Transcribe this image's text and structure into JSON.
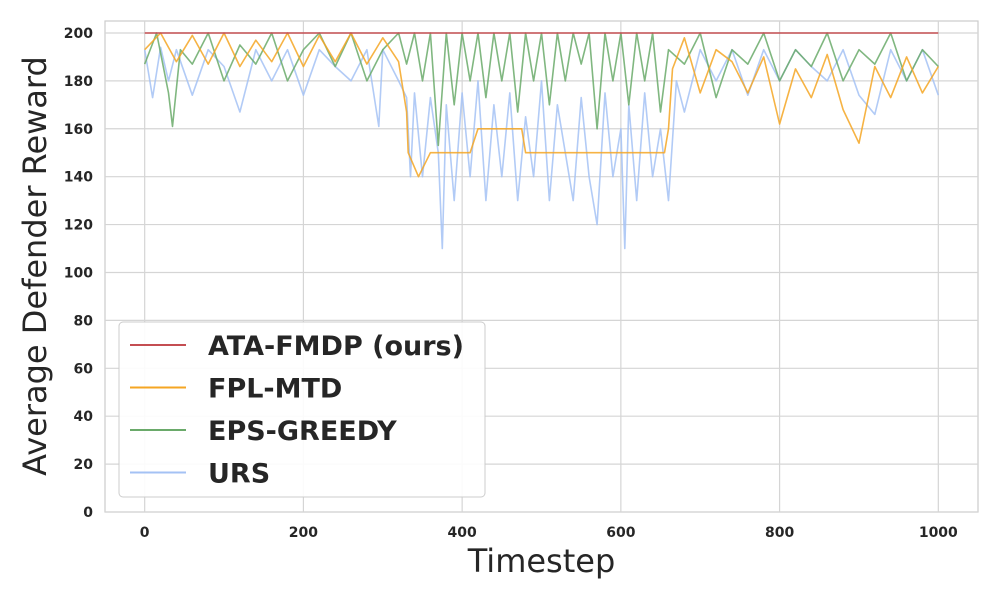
{
  "chart_data": {
    "type": "line",
    "title": "",
    "xlabel": "Timestep",
    "ylabel": "Average Defender Reward",
    "xlim": [
      -50,
      1050
    ],
    "ylim": [
      0,
      205
    ],
    "xticks": [
      0,
      200,
      400,
      600,
      800,
      1000
    ],
    "yticks": [
      0,
      20,
      40,
      60,
      80,
      100,
      120,
      140,
      160,
      180,
      200
    ],
    "grid": true,
    "legend": "lower-left",
    "series": [
      {
        "name": "ATA-FMDP (ours)",
        "color": "#c44e52",
        "x": [
          0,
          1000
        ],
        "y": [
          200,
          200
        ]
      },
      {
        "name": "FPL-MTD",
        "color": "#f5a623",
        "x": [
          0,
          20,
          40,
          60,
          80,
          100,
          120,
          140,
          160,
          180,
          200,
          220,
          240,
          260,
          280,
          300,
          320,
          330,
          332,
          345,
          360,
          380,
          400,
          410,
          420,
          440,
          460,
          475,
          480,
          500,
          520,
          540,
          560,
          580,
          600,
          620,
          640,
          655,
          660,
          665,
          680,
          700,
          720,
          740,
          760,
          780,
          800,
          820,
          840,
          860,
          880,
          900,
          920,
          940,
          960,
          980,
          1000
        ],
        "y": [
          193,
          200,
          188,
          199,
          187,
          200,
          186,
          197,
          188,
          200,
          186,
          199,
          188,
          200,
          187,
          198,
          188,
          167,
          150,
          140,
          150,
          150,
          150,
          150,
          160,
          160,
          160,
          160,
          150,
          150,
          150,
          150,
          150,
          150,
          150,
          150,
          150,
          150,
          160,
          185,
          198,
          175,
          193,
          188,
          175,
          190,
          162,
          185,
          173,
          191,
          168,
          154,
          186,
          173,
          190,
          175,
          186
        ]
      },
      {
        "name": "EPS-GREEDY",
        "color": "#6aaa6a",
        "x": [
          0,
          15,
          30,
          35,
          45,
          60,
          80,
          100,
          120,
          140,
          160,
          180,
          200,
          220,
          240,
          260,
          280,
          300,
          320,
          330,
          340,
          350,
          360,
          370,
          380,
          390,
          400,
          410,
          420,
          430,
          440,
          450,
          460,
          470,
          480,
          490,
          500,
          510,
          520,
          530,
          540,
          550,
          560,
          570,
          580,
          590,
          600,
          610,
          620,
          630,
          640,
          650,
          660,
          680,
          700,
          720,
          740,
          760,
          780,
          800,
          820,
          840,
          860,
          880,
          900,
          920,
          940,
          960,
          980,
          1000
        ],
        "y": [
          187,
          200,
          175,
          161,
          193,
          187,
          200,
          180,
          195,
          187,
          200,
          180,
          193,
          200,
          186,
          200,
          180,
          193,
          200,
          187,
          200,
          180,
          200,
          153,
          200,
          170,
          200,
          180,
          200,
          173,
          200,
          180,
          200,
          167,
          200,
          180,
          200,
          170,
          200,
          180,
          200,
          187,
          200,
          160,
          200,
          180,
          200,
          170,
          200,
          180,
          200,
          167,
          193,
          187,
          200,
          173,
          193,
          187,
          200,
          180,
          193,
          186,
          200,
          180,
          193,
          187,
          200,
          180,
          193,
          186
        ]
      },
      {
        "name": "URS",
        "color": "#a4c2f4",
        "x": [
          0,
          10,
          20,
          30,
          40,
          60,
          80,
          100,
          120,
          140,
          160,
          180,
          200,
          220,
          240,
          260,
          280,
          295,
          300,
          320,
          330,
          335,
          340,
          350,
          360,
          370,
          375,
          380,
          390,
          400,
          410,
          420,
          430,
          440,
          450,
          460,
          470,
          480,
          490,
          500,
          510,
          520,
          530,
          540,
          550,
          560,
          570,
          580,
          590,
          600,
          605,
          610,
          620,
          630,
          640,
          650,
          660,
          670,
          680,
          700,
          720,
          740,
          760,
          780,
          800,
          820,
          840,
          860,
          880,
          900,
          920,
          940,
          960,
          980,
          1000
        ],
        "y": [
          193,
          173,
          194,
          180,
          193,
          174,
          193,
          186,
          167,
          193,
          180,
          193,
          174,
          193,
          186,
          180,
          193,
          161,
          193,
          180,
          173,
          140,
          175,
          140,
          173,
          150,
          110,
          170,
          130,
          175,
          140,
          180,
          130,
          170,
          140,
          175,
          130,
          165,
          140,
          180,
          130,
          170,
          150,
          130,
          173,
          140,
          120,
          175,
          140,
          160,
          110,
          170,
          130,
          175,
          140,
          160,
          130,
          180,
          167,
          193,
          180,
          193,
          174,
          193,
          180,
          193,
          186,
          180,
          193,
          174,
          166,
          193,
          180,
          193,
          174
        ]
      }
    ]
  }
}
